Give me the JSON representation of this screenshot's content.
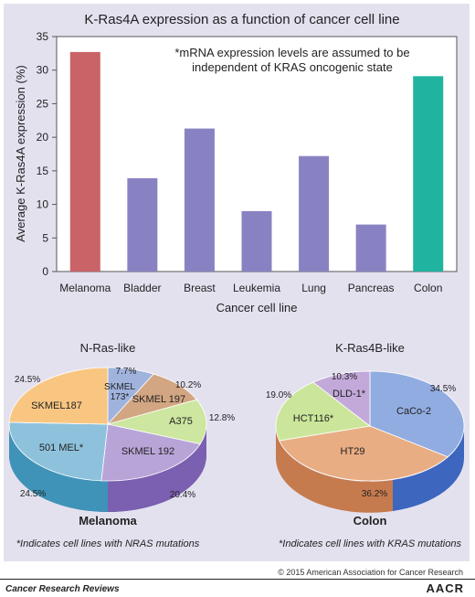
{
  "chart_data": [
    {
      "type": "bar",
      "title": "K-Ras4A expression as a function of cancer cell line",
      "annotation_lines": [
        "*mRNA expression levels are assumed to be",
        "independent of KRAS oncogenic state"
      ],
      "xlabel": "Cancer cell line",
      "ylabel": "Average K-Ras4A expression (%)",
      "ylim": [
        0,
        35
      ],
      "yticks": [
        0,
        5,
        10,
        15,
        20,
        25,
        30,
        35
      ],
      "categories": [
        "Melanoma",
        "Bladder",
        "Breast",
        "Leukemia",
        "Lung",
        "Pancreas",
        "Colon"
      ],
      "values": [
        32.7,
        13.9,
        21.3,
        9.0,
        17.2,
        7.0,
        29.1
      ],
      "colors": [
        "#c96367",
        "#8982c2",
        "#8982c2",
        "#8982c2",
        "#8982c2",
        "#8982c2",
        "#20b3a0"
      ],
      "grid": false
    },
    {
      "type": "pie",
      "title": "N-Ras-like",
      "caption": "Melanoma",
      "slices": [
        {
          "label": "SKMEL 173*",
          "value": 7.7,
          "pct": "7.7%",
          "color": "#9fb3dd"
        },
        {
          "label": "SKMEL 197",
          "value": 10.2,
          "pct": "10.2%",
          "color": "#d2a682"
        },
        {
          "label": "A375",
          "value": 12.8,
          "pct": "12.8%",
          "color": "#cde6a0"
        },
        {
          "label": "SKMEL 192",
          "value": 20.4,
          "pct": "20.4%",
          "color": "#b9a4d8"
        },
        {
          "label": "501 MEL*",
          "value": 24.5,
          "pct": "24.5%",
          "color": "#8ec2dc"
        },
        {
          "label": "SKMEL187",
          "value": 24.5,
          "pct": "24.5%",
          "color": "#f9c682"
        }
      ],
      "footnote": "*Indicates cell lines with NRAS mutations"
    },
    {
      "type": "pie",
      "title": "K-Ras4B-like",
      "caption": "Colon",
      "slices": [
        {
          "label": "CaCo-2",
          "value": 34.5,
          "pct": "34.5%",
          "color": "#91ace0"
        },
        {
          "label": "HT29",
          "value": 36.2,
          "pct": "36.2%",
          "color": "#e9ad83"
        },
        {
          "label": "HCT116*",
          "value": 19.0,
          "pct": "19.0%",
          "color": "#cbe69a"
        },
        {
          "label": "DLD-1*",
          "value": 10.3,
          "pct": "10.3%",
          "color": "#c3a9da"
        }
      ],
      "footnote": "*Indicates cell lines with KRAS mutations"
    }
  ],
  "copyright": "© 2015 American Association for Cancer Research",
  "journal": "Cancer Research Reviews",
  "logo_text": "AACR"
}
